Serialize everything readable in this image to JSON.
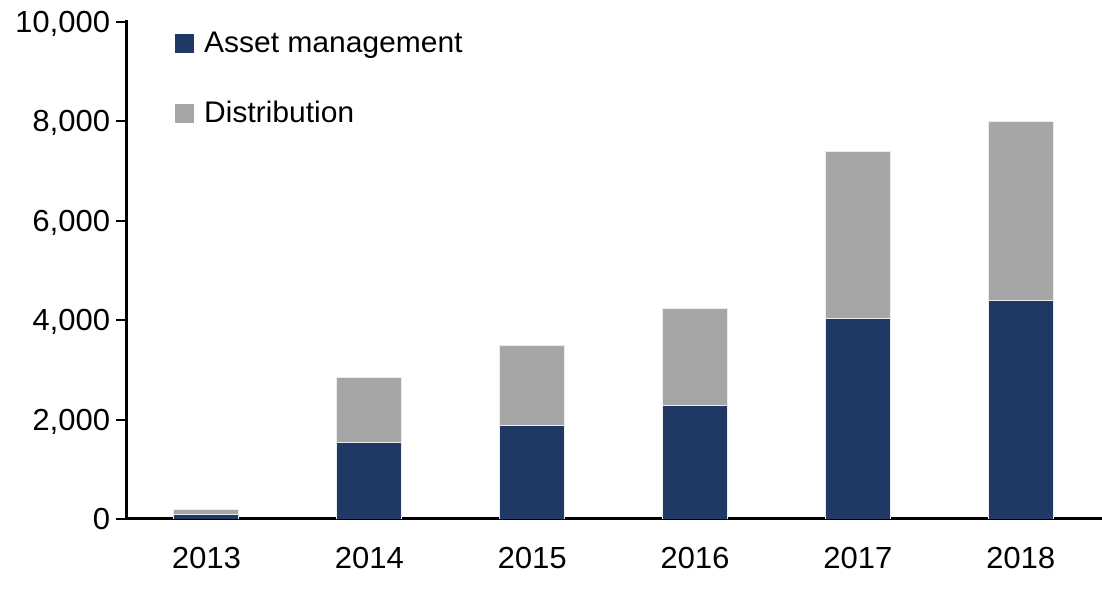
{
  "chart_data": {
    "type": "bar",
    "stacked": true,
    "title": "",
    "xlabel": "",
    "ylabel": "",
    "categories": [
      "2013",
      "2014",
      "2015",
      "2016",
      "2017",
      "2018"
    ],
    "series": [
      {
        "name": "Asset management",
        "color": "#1F3864",
        "values": [
          100,
          1550,
          1900,
          2300,
          4050,
          4400
        ]
      },
      {
        "name": "Distribution",
        "color": "#A6A6A6",
        "values": [
          100,
          1300,
          1600,
          1950,
          3350,
          3600
        ]
      }
    ],
    "totals": [
      200,
      2850,
      3500,
      4250,
      7400,
      8000
    ],
    "ylim": [
      0,
      10000
    ],
    "yticks": [
      0,
      2000,
      4000,
      6000,
      8000,
      10000
    ],
    "ytick_labels": [
      "0",
      "2,000",
      "4,000",
      "6,000",
      "8,000",
      "10,000"
    ],
    "grid": false,
    "legend_position": "top-left",
    "axis_color": "#000000",
    "text_color": "#000000",
    "background_color": "#FFFFFF"
  }
}
